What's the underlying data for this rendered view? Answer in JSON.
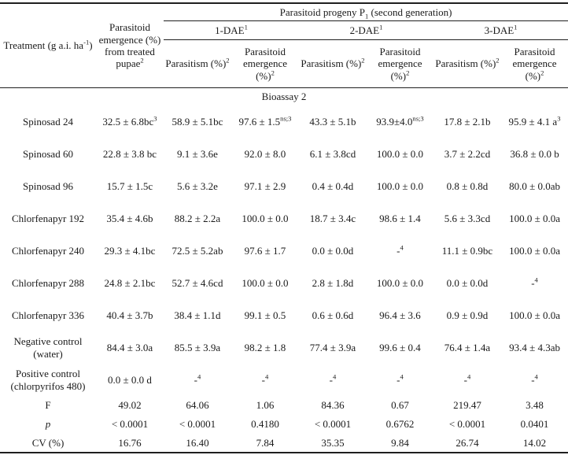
{
  "table": {
    "header": {
      "treatment": "Treatment (g a.i. ha^{-1})",
      "emergence_from_pupae": "Parasitoid emergence (%) from treated pupae^{2}",
      "progeny_group": "Parasitoid progeny P_{1} (second generation)",
      "dae_groups": [
        "1-DAE^{1}",
        "2-DAE^{1}",
        "3-DAE^{1}"
      ],
      "parasitism_label": "Parasitism (%)^{2}",
      "parasitoid_emergence_label": "Parasitoid emergence (%)^{2}"
    },
    "section_label": "Bioassay 2",
    "rows": [
      {
        "label": "Spinosad 24",
        "cells": [
          "32.5 ± 6.8bc^{3}",
          "58.9 ± 5.1bc",
          "97.6 ± 1.5^{ns;3}",
          "43.3 ± 5.1b",
          "93.9±4.0^{ns;3}",
          "17.8 ± 2.1b",
          "95.9 ± 4.1 a^{3}"
        ]
      },
      {
        "label": "Spinosad 60",
        "cells": [
          "22.8 ± 3.8 bc",
          "9.1 ± 3.6e",
          "92.0 ± 8.0",
          "6.1 ± 3.8cd",
          "100.0 ± 0.0",
          "3.7 ± 2.2cd",
          "36.8 ± 0.0 b"
        ]
      },
      {
        "label": "Spinosad 96",
        "cells": [
          "15.7 ± 1.5c",
          "5.6 ± 3.2e",
          "97.1 ± 2.9",
          "0.4 ± 0.4d",
          "100.0 ± 0.0",
          "0.8 ± 0.8d",
          "80.0 ± 0.0ab"
        ]
      },
      {
        "label": "Chlorfenapyr 192",
        "cells": [
          "35.4 ± 4.6b",
          "88.2 ± 2.2a",
          "100.0 ± 0.0",
          "18.7 ± 3.4c",
          "98.6 ± 1.4",
          "5.6 ± 3.3cd",
          "100.0 ± 0.0a"
        ]
      },
      {
        "label": "Chlorfenapyr 240",
        "cells": [
          "29.3 ± 4.1bc",
          "72.5 ± 5.2ab",
          "97.6 ± 1.7",
          "0.0 ± 0.0d",
          "-^{4}",
          "11.1 ± 0.9bc",
          "100.0 ± 0.0a"
        ]
      },
      {
        "label": "Chlorfenapyr 288",
        "cells": [
          "24.8 ± 2.1bc",
          "52.7 ± 4.6cd",
          "100.0 ± 0.0",
          "2.8 ± 1.8d",
          "100.0 ± 0.0",
          "0.0 ± 0.0d",
          "-^{4}"
        ]
      },
      {
        "label": "Chlorfenapyr 336",
        "cells": [
          "40.4 ± 3.7b",
          "38.4 ± 1.1d",
          "99.1 ± 0.5",
          "0.6 ± 0.6d",
          "96.4 ± 3.6",
          "0.9 ± 0.9d",
          "100.0 ± 0.0a"
        ]
      },
      {
        "label": "Negative control (water)",
        "cells": [
          "84.4 ± 3.0a",
          "85.5 ± 3.9a",
          "98.2 ± 1.8",
          "77.4 ± 3.9a",
          "99.6 ± 0.4",
          "76.4 ± 1.4a",
          "93.4 ± 4.3ab"
        ]
      },
      {
        "label": "Positive control (chlorpyrifos 480)",
        "cells": [
          "0.0 ± 0.0 d",
          "-^{4}",
          "-^{4}",
          "-^{4}",
          "-^{4}",
          "-^{4}",
          "-^{4}"
        ]
      },
      {
        "label": "F",
        "cells": [
          "49.02",
          "64.06",
          "1.06",
          "84.36",
          "0.67",
          "219.47",
          "3.48"
        ]
      },
      {
        "label": "p",
        "cells": [
          "< 0.0001",
          "< 0.0001",
          "0.4180",
          "< 0.0001",
          "0.6762",
          "< 0.0001",
          "0.0401"
        ]
      },
      {
        "label": "CV (%)",
        "cells": [
          "16.76",
          "16.40",
          "7.84",
          "35.35",
          "9.84",
          "26.74",
          "14.02"
        ]
      }
    ]
  }
}
